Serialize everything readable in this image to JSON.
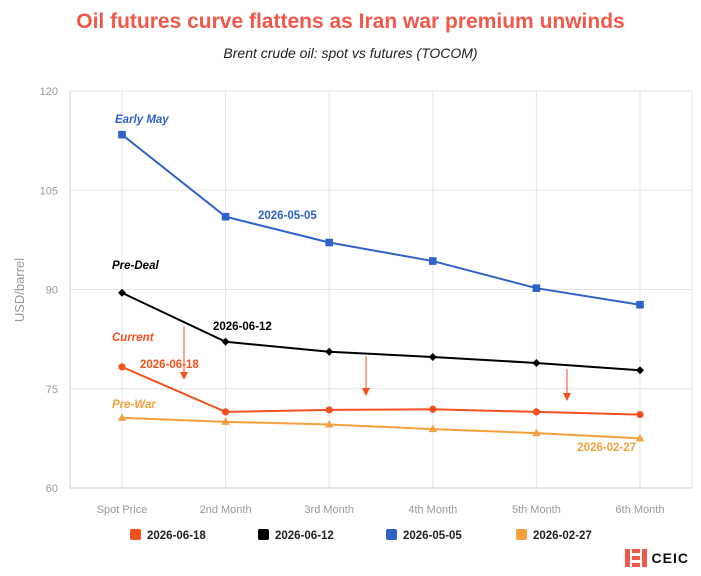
{
  "colors": {
    "title": "#f0594a",
    "grid": "#e5e5e5",
    "axis_text": "#999999",
    "brand": "#f0594a"
  },
  "chart_data": {
    "type": "line",
    "title": "Oil futures curve flattens as Iran war premium unwinds",
    "subtitle": "Brent crude oil: spot vs futures (TOCOM)",
    "ylabel": "USD/barrel",
    "xlabel": "",
    "ylim": [
      60,
      120
    ],
    "yticks": [
      "60",
      "75",
      "90",
      "105",
      "120"
    ],
    "categories": [
      "Spot Price",
      "2nd Month",
      "3rd Month",
      "4th Month",
      "5th Month",
      "6th Month"
    ],
    "grid": true,
    "legend_position": "bottom",
    "series": [
      {
        "name": "2026-06-18",
        "label": "Current",
        "color": "#f4511e",
        "marker": "circle",
        "values": [
          78.3,
          71.5,
          71.8,
          71.9,
          71.5,
          71.1
        ]
      },
      {
        "name": "2026-06-12",
        "label": "Pre-Deal",
        "color": "#000000",
        "marker": "diamond",
        "values": [
          89.5,
          82.1,
          80.6,
          79.8,
          78.9,
          77.8
        ]
      },
      {
        "name": "2026-05-05",
        "label": "Early May",
        "color": "#2e62c7",
        "marker": "square",
        "values": [
          113.4,
          101.0,
          97.1,
          94.3,
          90.2,
          87.7
        ]
      },
      {
        "name": "2026-02-27",
        "label": "Pre-War",
        "color": "#f5a03c",
        "marker": "triangle",
        "values": [
          70.6,
          70.0,
          69.6,
          68.9,
          68.3,
          67.5
        ]
      }
    ],
    "annotations": [
      {
        "text": "Early May",
        "color": "#2e62c7"
      },
      {
        "text": "2026-05-05",
        "color": "#2e62c7"
      },
      {
        "text": "Pre-Deal",
        "color": "#000000"
      },
      {
        "text": "2026-06-12",
        "color": "#000000"
      },
      {
        "text": "Current",
        "color": "#f4511e"
      },
      {
        "text": "2026-06-18",
        "color": "#f4511e"
      },
      {
        "text": "Pre-War",
        "color": "#f5a03c"
      },
      {
        "text": "2026-02-27",
        "color": "#f5a03c"
      }
    ],
    "arrow_color": "#f4511e"
  },
  "brand": {
    "name": "CEIC",
    "logo_icon": "ceic-logo-icon"
  }
}
